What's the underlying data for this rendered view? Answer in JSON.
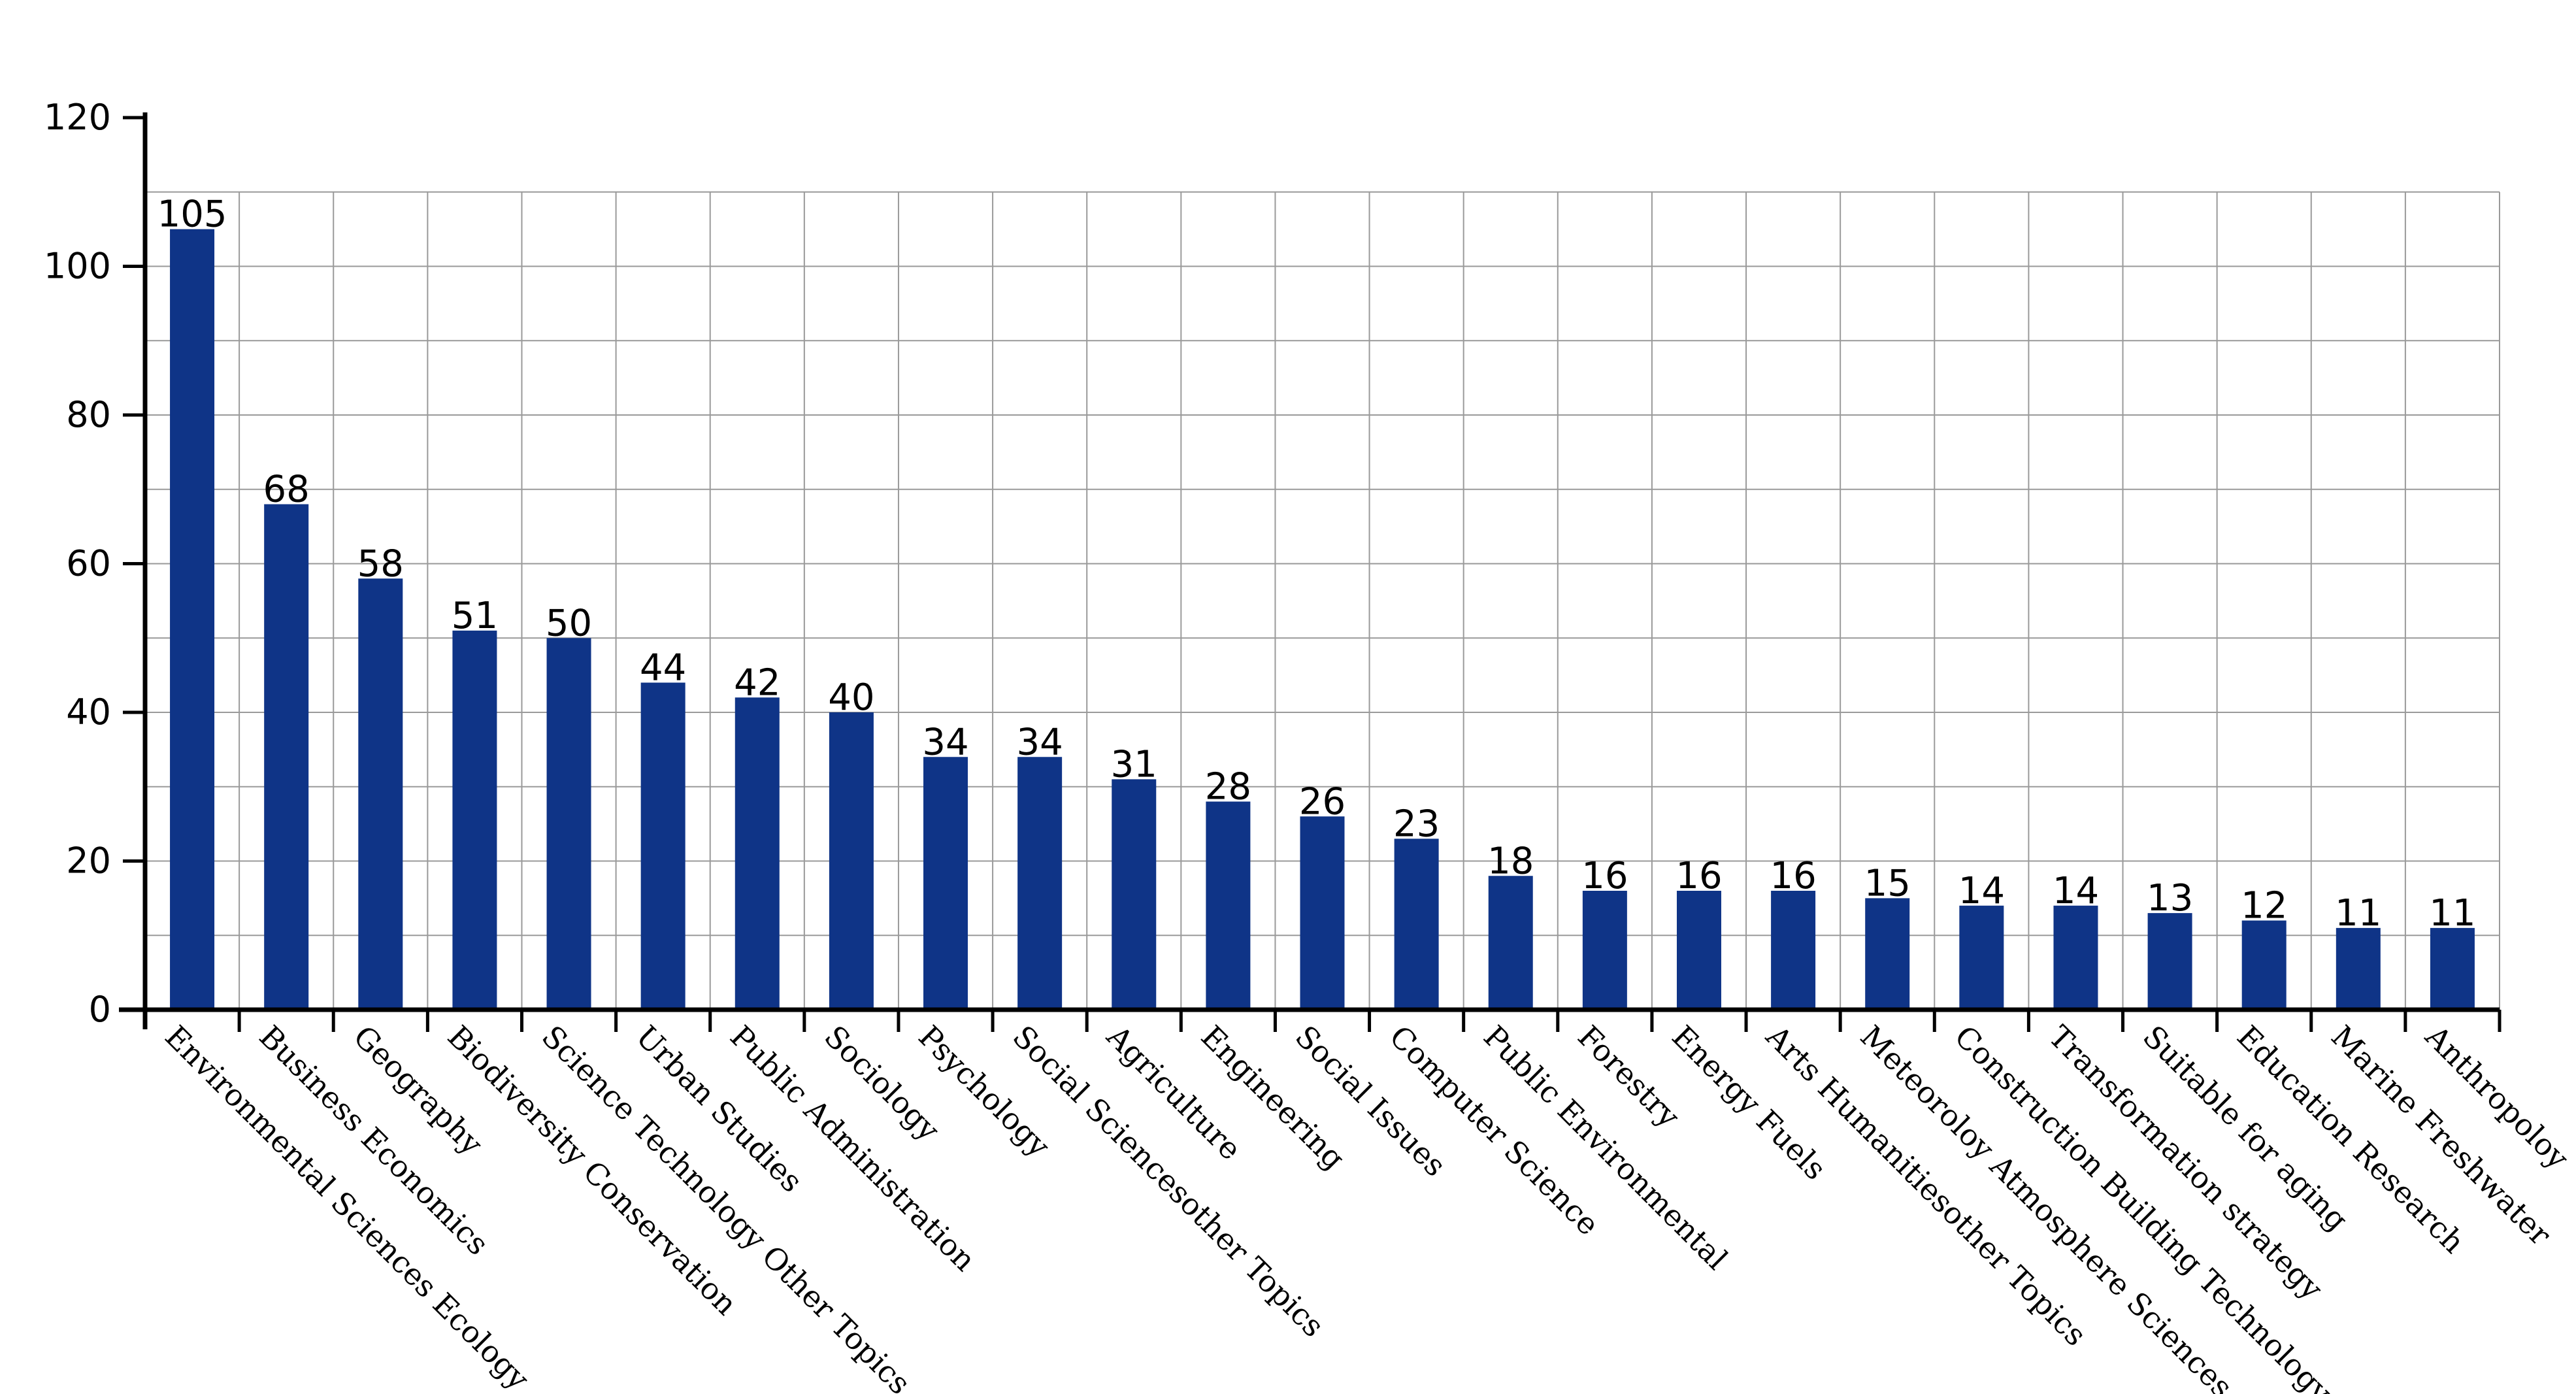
{
  "chart_data": {
    "type": "bar",
    "title": "",
    "xlabel": "",
    "ylabel": "",
    "ylim": [
      0,
      120
    ],
    "yticks": [
      0,
      20,
      40,
      60,
      80,
      100,
      120
    ],
    "grid": true,
    "bar_color": "#0f3487",
    "categories": [
      "Environmental Sciences Ecology",
      "Business Economics",
      "Geography",
      "Biodiversity Conservation",
      "Science Technology Other Topics",
      "Urban Studies",
      "Public Administration",
      "Sociology",
      "Psychology",
      "Social Sciencesother Topics",
      "Agriculture",
      "Engineering",
      "Social Issues",
      "Computer Science",
      "Public Environmental",
      "Forestry",
      "Energy Fuels",
      "Arts Humanitiesother Topics",
      "Meteoroloy Atmosphere Sciences",
      "Construction Building Technology",
      "Transformation strategy",
      "Suitable for aging",
      "Education Research",
      "Marine Freshwater",
      "Anthropoloy"
    ],
    "values": [
      105,
      68,
      58,
      51,
      50,
      44,
      42,
      40,
      34,
      34,
      31,
      28,
      26,
      23,
      18,
      16,
      16,
      16,
      15,
      14,
      14,
      13,
      12,
      11,
      11
    ]
  }
}
